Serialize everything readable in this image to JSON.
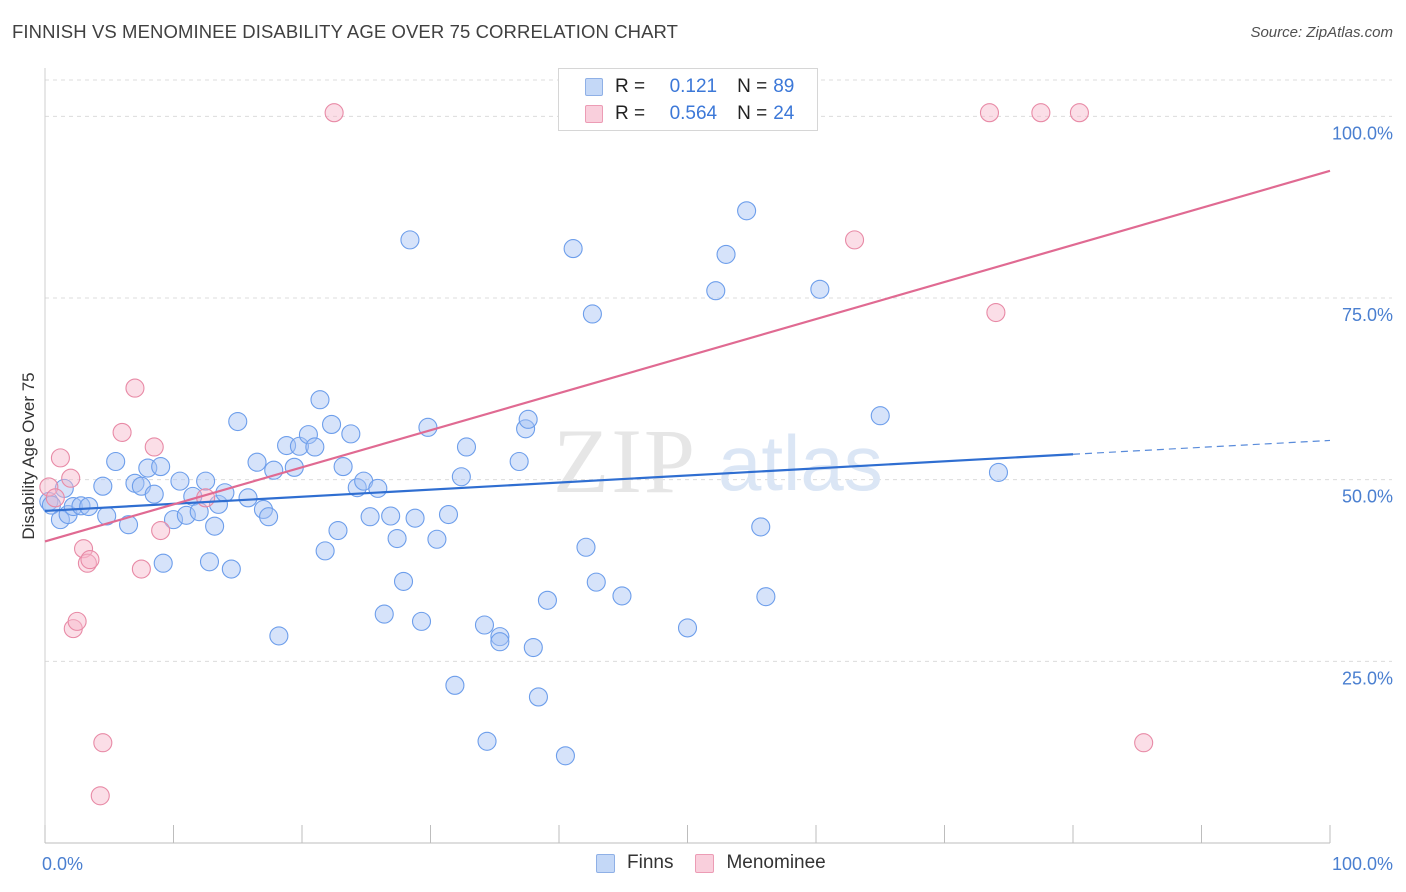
{
  "title": "FINNISH VS MENOMINEE DISABILITY AGE OVER 75 CORRELATION CHART",
  "source": "Source: ZipAtlas.com",
  "watermark": {
    "zip": "ZIP",
    "atlas": "atlas"
  },
  "legend": {
    "rows": [
      {
        "r_label": "R =",
        "r_value": "0.121",
        "n_label": "N =",
        "n_value": "89",
        "color": "#a4c2f4"
      },
      {
        "r_label": "R =",
        "r_value": "0.564",
        "n_label": "N =",
        "n_value": "24",
        "color": "#f7b6c9"
      }
    ]
  },
  "bottom_legend": {
    "finns": "Finns",
    "menominee": "Menominee"
  },
  "chart_data": {
    "type": "scatter",
    "title": "FINNISH VS MENOMINEE DISABILITY AGE OVER 75 CORRELATION CHART",
    "xlabel": "",
    "ylabel": "Disability Age Over 75",
    "xlim": [
      0,
      100
    ],
    "ylim": [
      0,
      105
    ],
    "x_tick_labels": [
      "0.0%",
      "100.0%"
    ],
    "y_ticks": [
      25,
      50,
      75,
      100
    ],
    "y_tick_labels": [
      "25.0%",
      "50.0%",
      "75.0%",
      "100.0%"
    ],
    "grid": true,
    "series": [
      {
        "name": "Finns",
        "color": "#a4c2f4",
        "stroke": "#6d9eeb",
        "r": 0.121,
        "n": 89,
        "trend": {
          "x0": 0,
          "y0": 45.7,
          "x1": 80,
          "y1": 53.5,
          "dash_to": 100,
          "dash_y": 55.4,
          "color": "#2f6ed1"
        },
        "points": [
          [
            0.3,
            47.0
          ],
          [
            0.5,
            46.5
          ],
          [
            1.2,
            44.5
          ],
          [
            1.5,
            48.8
          ],
          [
            1.8,
            45.2
          ],
          [
            2.2,
            46.3
          ],
          [
            2.8,
            46.4
          ],
          [
            3.4,
            46.3
          ],
          [
            4.5,
            49.1
          ],
          [
            4.8,
            45.0
          ],
          [
            5.5,
            52.5
          ],
          [
            6.5,
            43.8
          ],
          [
            7.0,
            49.5
          ],
          [
            7.5,
            49.1
          ],
          [
            8.0,
            51.6
          ],
          [
            8.5,
            48.0
          ],
          [
            9.0,
            51.8
          ],
          [
            9.2,
            38.5
          ],
          [
            10.0,
            44.5
          ],
          [
            10.5,
            49.8
          ],
          [
            11.0,
            45.1
          ],
          [
            11.5,
            47.7
          ],
          [
            12.0,
            45.6
          ],
          [
            12.5,
            49.8
          ],
          [
            12.8,
            38.7
          ],
          [
            13.2,
            43.6
          ],
          [
            13.5,
            46.6
          ],
          [
            14.0,
            48.2
          ],
          [
            14.5,
            37.7
          ],
          [
            15.0,
            58.0
          ],
          [
            15.8,
            47.5
          ],
          [
            16.5,
            52.4
          ],
          [
            17.0,
            45.9
          ],
          [
            17.4,
            44.9
          ],
          [
            17.8,
            51.3
          ],
          [
            18.2,
            28.5
          ],
          [
            18.8,
            54.7
          ],
          [
            19.4,
            51.7
          ],
          [
            19.8,
            54.6
          ],
          [
            20.5,
            56.2
          ],
          [
            21.0,
            54.5
          ],
          [
            21.4,
            61.0
          ],
          [
            21.8,
            40.2
          ],
          [
            22.3,
            57.6
          ],
          [
            22.8,
            43.0
          ],
          [
            23.2,
            51.8
          ],
          [
            23.8,
            56.3
          ],
          [
            24.3,
            48.9
          ],
          [
            24.8,
            49.8
          ],
          [
            25.3,
            44.9
          ],
          [
            25.9,
            48.8
          ],
          [
            26.4,
            31.5
          ],
          [
            26.9,
            45.0
          ],
          [
            27.4,
            41.9
          ],
          [
            27.9,
            36.0
          ],
          [
            28.4,
            83.0
          ],
          [
            28.8,
            44.7
          ],
          [
            29.3,
            30.5
          ],
          [
            29.8,
            57.2
          ],
          [
            30.5,
            41.8
          ],
          [
            31.4,
            45.2
          ],
          [
            31.9,
            21.7
          ],
          [
            32.4,
            50.4
          ],
          [
            32.8,
            54.5
          ],
          [
            34.2,
            30.0
          ],
          [
            34.4,
            14.0
          ],
          [
            35.4,
            28.4
          ],
          [
            35.4,
            27.7
          ],
          [
            36.9,
            52.5
          ],
          [
            37.4,
            57.0
          ],
          [
            37.6,
            58.3
          ],
          [
            38.0,
            26.9
          ],
          [
            38.4,
            20.1
          ],
          [
            39.1,
            33.4
          ],
          [
            40.5,
            12.0
          ],
          [
            41.1,
            81.8
          ],
          [
            42.1,
            40.7
          ],
          [
            42.6,
            72.8
          ],
          [
            42.9,
            35.9
          ],
          [
            44.9,
            34.0
          ],
          [
            50.0,
            29.6
          ],
          [
            52.2,
            76.0
          ],
          [
            53.0,
            81.0
          ],
          [
            54.6,
            87.0
          ],
          [
            55.7,
            43.5
          ],
          [
            56.1,
            33.9
          ],
          [
            60.3,
            76.2
          ],
          [
            65.0,
            58.8
          ],
          [
            74.2,
            51.0
          ]
        ]
      },
      {
        "name": "Menominee",
        "color": "#f7b6c9",
        "stroke": "#e88aa6",
        "r": 0.564,
        "n": 24,
        "trend": {
          "x0": 0,
          "y0": 41.5,
          "x1": 100,
          "y1": 92.5,
          "color": "#e06a92"
        },
        "points": [
          [
            0.3,
            49.0
          ],
          [
            0.8,
            47.5
          ],
          [
            1.2,
            53.0
          ],
          [
            2.0,
            50.2
          ],
          [
            2.2,
            29.5
          ],
          [
            2.5,
            30.5
          ],
          [
            3.0,
            40.5
          ],
          [
            3.3,
            38.5
          ],
          [
            3.5,
            39.0
          ],
          [
            4.3,
            6.5
          ],
          [
            4.5,
            13.8
          ],
          [
            6.0,
            56.5
          ],
          [
            7.0,
            62.6
          ],
          [
            7.5,
            37.7
          ],
          [
            8.5,
            54.5
          ],
          [
            9.0,
            43.0
          ],
          [
            12.5,
            47.5
          ],
          [
            22.5,
            100.5
          ],
          [
            63.0,
            83.0
          ],
          [
            73.5,
            100.5
          ],
          [
            74.0,
            73.0
          ],
          [
            77.5,
            100.5
          ],
          [
            80.5,
            100.5
          ],
          [
            85.5,
            13.8
          ]
        ]
      }
    ]
  }
}
